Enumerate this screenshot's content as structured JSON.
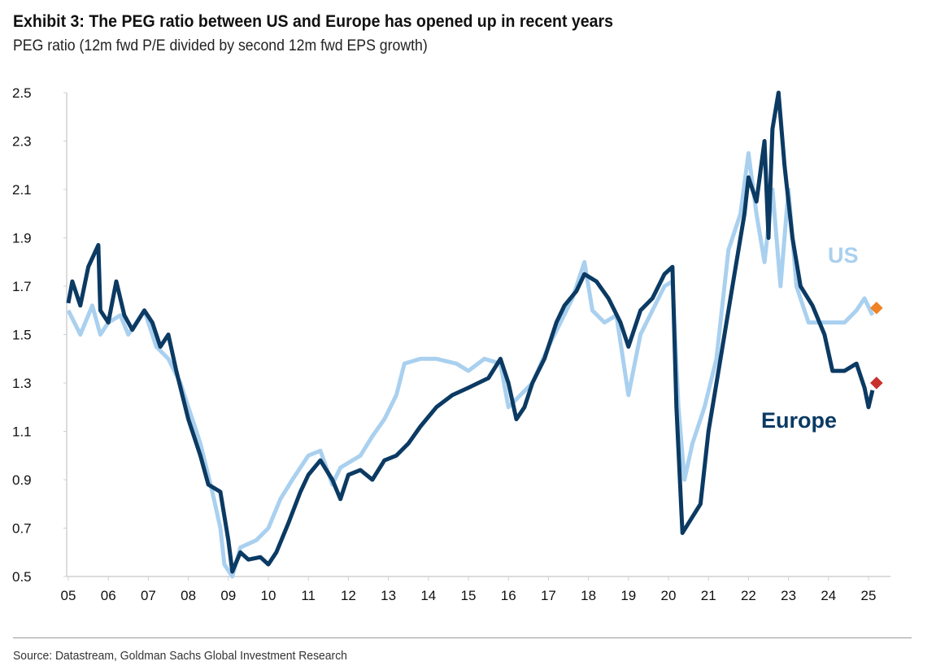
{
  "title": "Exhibit 3: The PEG ratio between US and Europe has opened up in recent years",
  "subtitle": "PEG ratio (12m fwd P/E divided by second 12m fwd EPS growth)",
  "source": "Source: Datastream, Goldman Sachs Global Investment Research",
  "chart_data": {
    "type": "line",
    "title": "Exhibit 3: The PEG ratio between US and Europe has opened up in recent years",
    "ylabel": "PEG ratio",
    "xlabel": "",
    "ylim": [
      0.5,
      2.5
    ],
    "xlim": [
      2005,
      2025.6
    ],
    "yticks": [
      0.5,
      0.7,
      0.9,
      1.1,
      1.3,
      1.5,
      1.7,
      1.9,
      2.1,
      2.3,
      2.5
    ],
    "ytick_labels": [
      "0.5",
      "0.7",
      "0.9",
      "1.1",
      "1.3",
      "1.5",
      "1.7",
      "1.9",
      "2.1",
      "2.3",
      "2.5"
    ],
    "xticks": [
      2005,
      2006,
      2007,
      2008,
      2009,
      2010,
      2011,
      2012,
      2013,
      2014,
      2015,
      2016,
      2017,
      2018,
      2019,
      2020,
      2021,
      2022,
      2023,
      2024,
      2025
    ],
    "xtick_labels": [
      "05",
      "06",
      "07",
      "08",
      "09",
      "10",
      "11",
      "12",
      "13",
      "14",
      "15",
      "16",
      "17",
      "18",
      "19",
      "20",
      "21",
      "22",
      "23",
      "24",
      "25"
    ],
    "grid": false,
    "series": [
      {
        "name": "US",
        "color": "#a9d0ef",
        "marker_color": "#f08223",
        "marker_value": 1.61,
        "x": [
          2005.0,
          2005.3,
          2005.6,
          2005.8,
          2006.0,
          2006.3,
          2006.5,
          2006.9,
          2007.2,
          2007.5,
          2007.8,
          2008.0,
          2008.3,
          2008.6,
          2008.8,
          2008.9,
          2009.1,
          2009.3,
          2009.7,
          2010.0,
          2010.3,
          2010.6,
          2011.0,
          2011.3,
          2011.6,
          2011.8,
          2012.3,
          2012.6,
          2012.9,
          2013.2,
          2013.4,
          2013.8,
          2014.2,
          2014.7,
          2015.0,
          2015.4,
          2015.8,
          2016.0,
          2016.3,
          2016.6,
          2017.0,
          2017.3,
          2017.6,
          2017.9,
          2018.1,
          2018.4,
          2018.7,
          2019.0,
          2019.3,
          2019.6,
          2019.9,
          2020.1,
          2020.25,
          2020.4,
          2020.6,
          2020.9,
          2021.2,
          2021.5,
          2021.8,
          2022.0,
          2022.2,
          2022.4,
          2022.6,
          2022.8,
          2023.0,
          2023.2,
          2023.5,
          2023.8,
          2024.1,
          2024.4,
          2024.7,
          2024.9,
          2025.1
        ],
        "values": [
          1.6,
          1.5,
          1.62,
          1.5,
          1.55,
          1.58,
          1.5,
          1.6,
          1.45,
          1.4,
          1.3,
          1.2,
          1.05,
          0.85,
          0.7,
          0.55,
          0.5,
          0.62,
          0.65,
          0.7,
          0.82,
          0.9,
          1.0,
          1.02,
          0.88,
          0.95,
          1.0,
          1.08,
          1.15,
          1.25,
          1.38,
          1.4,
          1.4,
          1.38,
          1.35,
          1.4,
          1.38,
          1.2,
          1.25,
          1.3,
          1.45,
          1.55,
          1.65,
          1.8,
          1.6,
          1.55,
          1.58,
          1.25,
          1.5,
          1.6,
          1.7,
          1.72,
          1.2,
          0.9,
          1.05,
          1.2,
          1.4,
          1.85,
          2.0,
          2.25,
          2.0,
          1.8,
          2.1,
          1.7,
          2.1,
          1.7,
          1.55,
          1.55,
          1.55,
          1.55,
          1.6,
          1.65,
          1.58
        ]
      },
      {
        "name": "Europe",
        "color": "#0b3a63",
        "marker_color": "#c8312c",
        "marker_value": 1.3,
        "x": [
          2005.0,
          2005.1,
          2005.3,
          2005.5,
          2005.75,
          2005.8,
          2006.0,
          2006.2,
          2006.4,
          2006.6,
          2006.9,
          2007.1,
          2007.3,
          2007.5,
          2007.7,
          2008.0,
          2008.3,
          2008.5,
          2008.8,
          2009.0,
          2009.1,
          2009.3,
          2009.5,
          2009.8,
          2010.0,
          2010.2,
          2010.5,
          2010.8,
          2011.0,
          2011.3,
          2011.6,
          2011.8,
          2012.0,
          2012.3,
          2012.6,
          2012.9,
          2013.2,
          2013.5,
          2013.8,
          2014.2,
          2014.6,
          2015.0,
          2015.5,
          2015.8,
          2016.0,
          2016.2,
          2016.4,
          2016.6,
          2016.9,
          2017.2,
          2017.4,
          2017.7,
          2017.9,
          2018.2,
          2018.5,
          2018.8,
          2019.0,
          2019.3,
          2019.6,
          2019.9,
          2020.1,
          2020.2,
          2020.35,
          2020.5,
          2020.8,
          2021.0,
          2021.3,
          2021.6,
          2021.9,
          2022.0,
          2022.2,
          2022.4,
          2022.5,
          2022.6,
          2022.75,
          2022.9,
          2023.1,
          2023.3,
          2023.6,
          2023.9,
          2024.1,
          2024.4,
          2024.7,
          2024.9,
          2025.0,
          2025.1
        ],
        "values": [
          1.63,
          1.72,
          1.62,
          1.78,
          1.87,
          1.6,
          1.55,
          1.72,
          1.58,
          1.52,
          1.6,
          1.55,
          1.45,
          1.5,
          1.35,
          1.15,
          1.0,
          0.88,
          0.85,
          0.65,
          0.52,
          0.6,
          0.57,
          0.58,
          0.55,
          0.6,
          0.72,
          0.85,
          0.92,
          0.98,
          0.9,
          0.82,
          0.92,
          0.94,
          0.9,
          0.98,
          1.0,
          1.05,
          1.12,
          1.2,
          1.25,
          1.28,
          1.32,
          1.4,
          1.3,
          1.15,
          1.2,
          1.3,
          1.4,
          1.55,
          1.62,
          1.68,
          1.75,
          1.72,
          1.65,
          1.55,
          1.45,
          1.6,
          1.65,
          1.75,
          1.78,
          1.2,
          0.68,
          0.72,
          0.8,
          1.1,
          1.4,
          1.7,
          2.0,
          2.15,
          2.05,
          2.3,
          1.9,
          2.35,
          2.5,
          2.2,
          1.9,
          1.7,
          1.62,
          1.5,
          1.35,
          1.35,
          1.38,
          1.28,
          1.2,
          1.27
        ]
      }
    ],
    "annotations": [
      "US",
      "Europe"
    ]
  }
}
